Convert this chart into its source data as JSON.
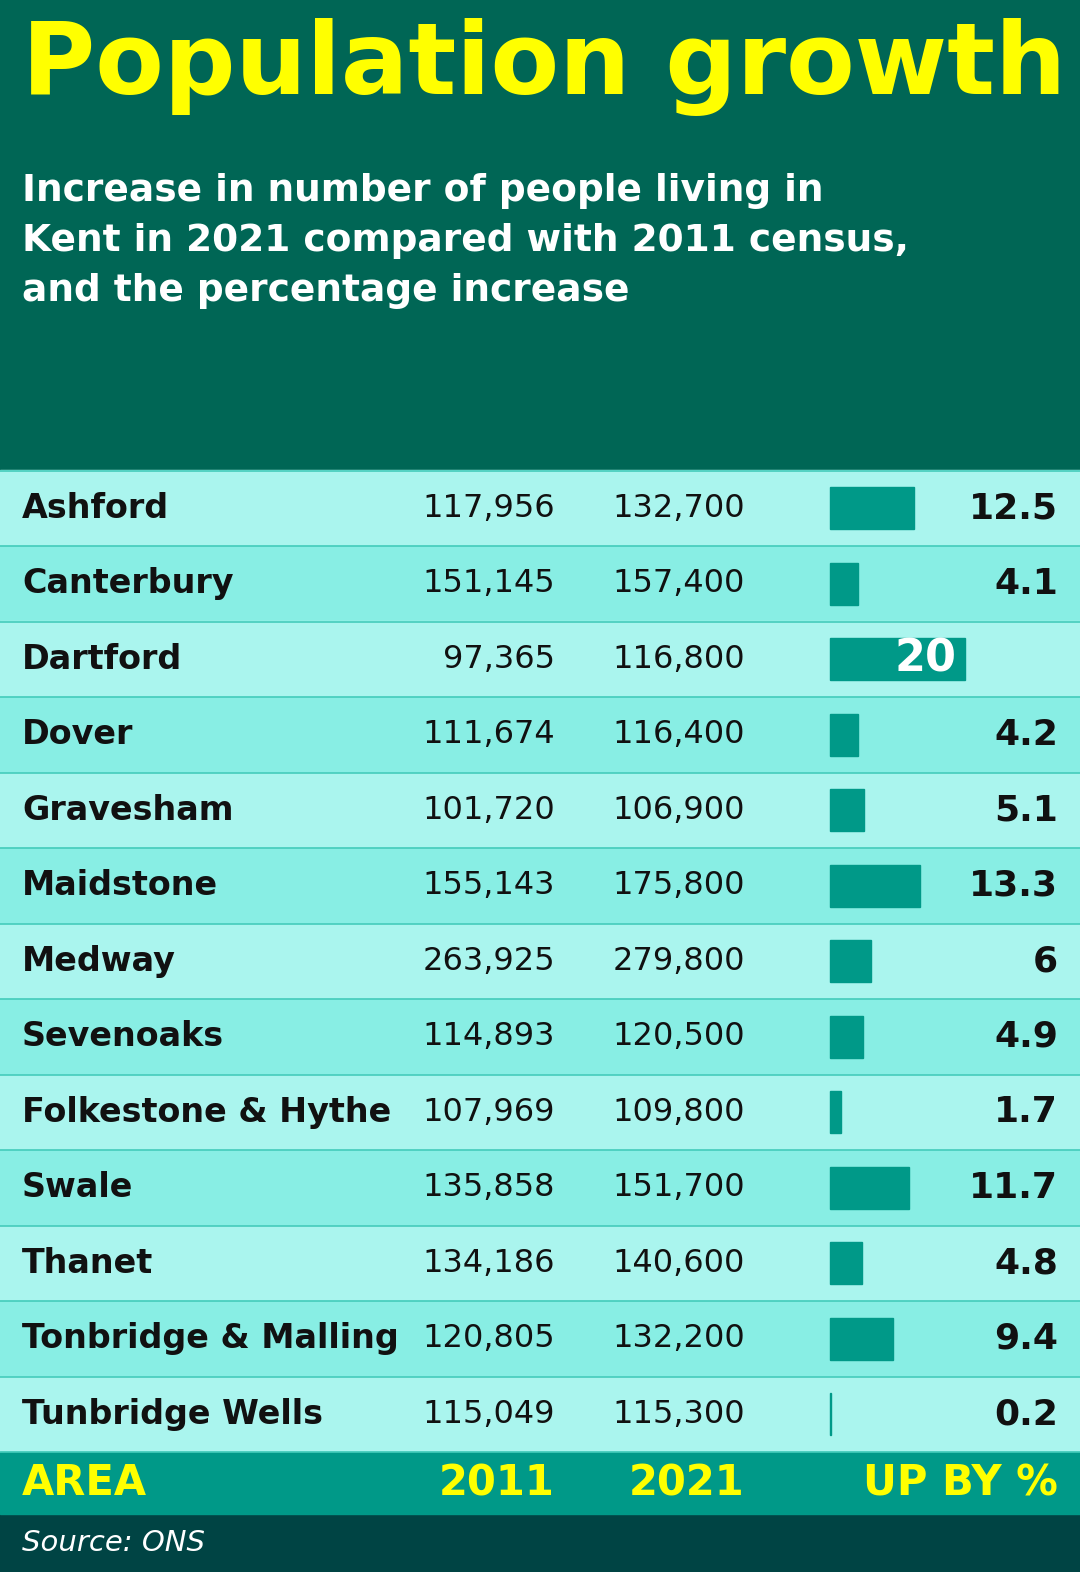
{
  "title": "Population growth",
  "subtitle": "Increase in number of people living in\nKent in 2021 compared with 2011 census,\nand the percentage increase",
  "source": "Source: ONS",
  "bg_dark": "#006655",
  "bg_darker": "#004444",
  "header_bar_color": "#009988",
  "row_bg_even": "#aaf5ee",
  "row_bg_odd": "#88eee4",
  "row_separator": "#44ccbb",
  "title_color": "#ffff00",
  "subtitle_color": "#ffffff",
  "header_text_color": "#ffff00",
  "body_text_color": "#111111",
  "bar_color": "#009988",
  "dartford_bar_color": "#007766",
  "source_color": "#ffffff",
  "col_headers": [
    "AREA",
    "2011",
    "2021",
    "UP BY %"
  ],
  "areas": [
    "Ashford",
    "Canterbury",
    "Dartford",
    "Dover",
    "Gravesham",
    "Maidstone",
    "Medway",
    "Sevenoaks",
    "Folkestone & Hythe",
    "Swale",
    "Thanet",
    "Tonbridge & Malling",
    "Tunbridge Wells"
  ],
  "pop2011": [
    117956,
    151145,
    97365,
    111674,
    101720,
    155143,
    263925,
    114893,
    107969,
    135858,
    134186,
    120805,
    115049
  ],
  "pop2021": [
    132700,
    157400,
    116800,
    116400,
    106900,
    175800,
    279800,
    120500,
    109800,
    151700,
    140600,
    132200,
    115300
  ],
  "pct": [
    12.5,
    4.1,
    20.0,
    4.2,
    5.1,
    13.3,
    6.0,
    4.9,
    1.7,
    11.7,
    4.8,
    9.4,
    0.2
  ],
  "max_bar_pct": 20.0,
  "fig_width": 10.8,
  "fig_height": 15.72,
  "dpi": 100
}
